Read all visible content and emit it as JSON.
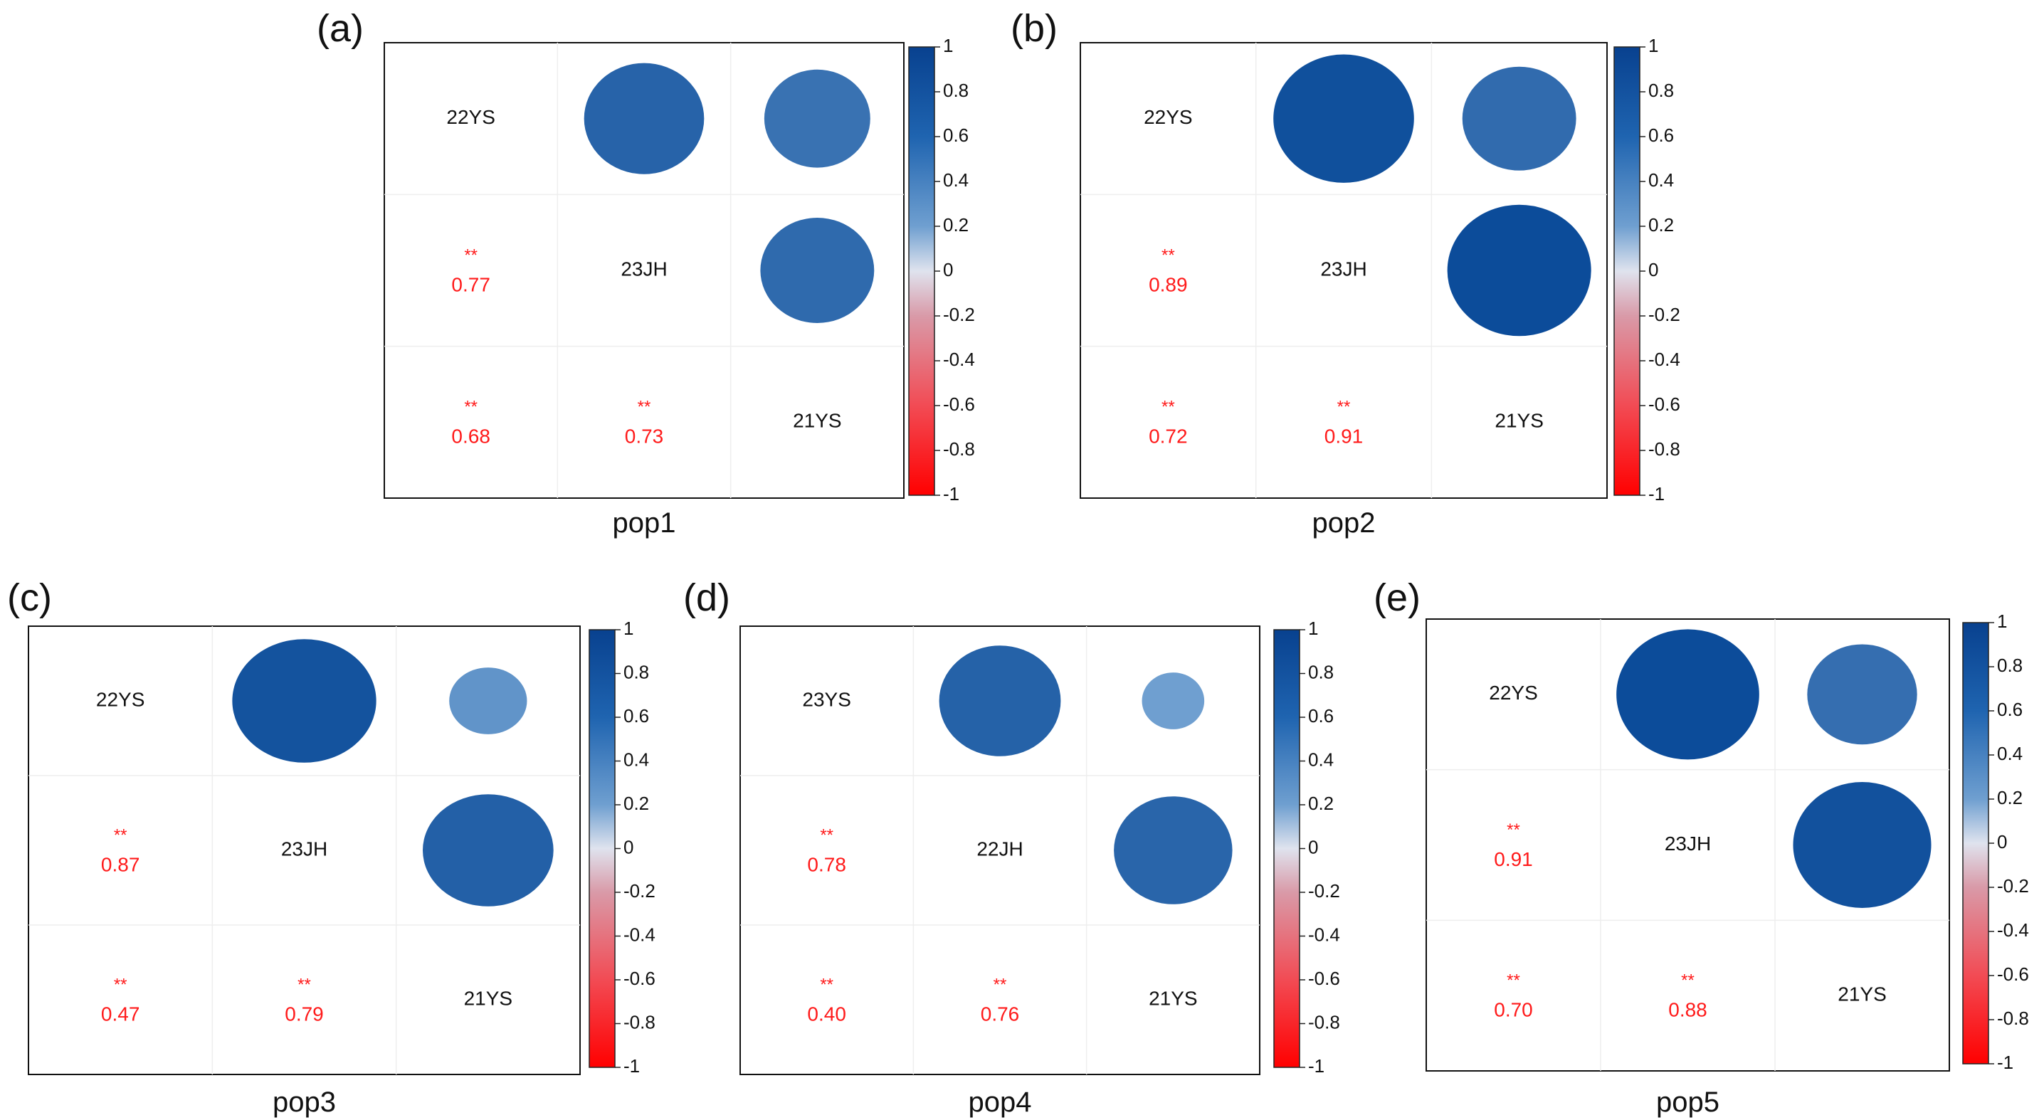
{
  "chart_data": [
    {
      "type": "heatmap",
      "panel": "(a)",
      "title": "pop1",
      "variables": [
        "22YS",
        "23JH",
        "21YS"
      ],
      "correlations": [
        {
          "row": "23JH",
          "col": "22YS",
          "r": 0.77,
          "sig": "**",
          "display": "0.77"
        },
        {
          "row": "21YS",
          "col": "22YS",
          "r": 0.68,
          "sig": "**",
          "display": "0.68"
        },
        {
          "row": "21YS",
          "col": "23JH",
          "r": 0.73,
          "sig": "**",
          "display": "0.73"
        }
      ],
      "colorbar": {
        "min": -1,
        "max": 1,
        "ticks": [
          "1",
          "0.8",
          "0.6",
          "0.4",
          "0.2",
          "0",
          "-0.2",
          "-0.4",
          "-0.6",
          "-0.8",
          "-1"
        ]
      }
    },
    {
      "type": "heatmap",
      "panel": "(b)",
      "title": "pop2",
      "variables": [
        "22YS",
        "23JH",
        "21YS"
      ],
      "correlations": [
        {
          "row": "23JH",
          "col": "22YS",
          "r": 0.89,
          "sig": "**",
          "display": "0.89"
        },
        {
          "row": "21YS",
          "col": "22YS",
          "r": 0.72,
          "sig": "**",
          "display": "0.72"
        },
        {
          "row": "21YS",
          "col": "23JH",
          "r": 0.91,
          "sig": "**",
          "display": "0.91"
        }
      ],
      "colorbar": {
        "min": -1,
        "max": 1,
        "ticks": [
          "1",
          "0.8",
          "0.6",
          "0.4",
          "0.2",
          "0",
          "-0.2",
          "-0.4",
          "-0.6",
          "-0.8",
          "-1"
        ]
      }
    },
    {
      "type": "heatmap",
      "panel": "(c)",
      "title": "pop3",
      "variables": [
        "22YS",
        "23JH",
        "21YS"
      ],
      "correlations": [
        {
          "row": "23JH",
          "col": "22YS",
          "r": 0.87,
          "sig": "**",
          "display": "0.87"
        },
        {
          "row": "21YS",
          "col": "22YS",
          "r": 0.47,
          "sig": "**",
          "display": "0.47"
        },
        {
          "row": "21YS",
          "col": "23JH",
          "r": 0.79,
          "sig": "**",
          "display": "0.79"
        }
      ],
      "colorbar": {
        "min": -1,
        "max": 1,
        "ticks": [
          "1",
          "0.8",
          "0.6",
          "0.4",
          "0.2",
          "0",
          "-0.2",
          "-0.4",
          "-0.6",
          "-0.8",
          "-1"
        ]
      }
    },
    {
      "type": "heatmap",
      "panel": "(d)",
      "title": "pop4",
      "variables": [
        "23YS",
        "22JH",
        "21YS"
      ],
      "correlations": [
        {
          "row": "22JH",
          "col": "23YS",
          "r": 0.78,
          "sig": "**",
          "display": "0.78"
        },
        {
          "row": "21YS",
          "col": "23YS",
          "r": 0.4,
          "sig": "**",
          "display": "0.40"
        },
        {
          "row": "21YS",
          "col": "22JH",
          "r": 0.76,
          "sig": "**",
          "display": "0.76"
        }
      ],
      "colorbar": {
        "min": -1,
        "max": 1,
        "ticks": [
          "1",
          "0.8",
          "0.6",
          "0.4",
          "0.2",
          "0",
          "-0.2",
          "-0.4",
          "-0.6",
          "-0.8",
          "-1"
        ]
      }
    },
    {
      "type": "heatmap",
      "panel": "(e)",
      "title": "pop5",
      "variables": [
        "22YS",
        "23JH",
        "21YS"
      ],
      "correlations": [
        {
          "row": "23JH",
          "col": "22YS",
          "r": 0.91,
          "sig": "**",
          "display": "0.91"
        },
        {
          "row": "21YS",
          "col": "22YS",
          "r": 0.7,
          "sig": "**",
          "display": "0.70"
        },
        {
          "row": "21YS",
          "col": "23JH",
          "r": 0.88,
          "sig": "**",
          "display": "0.88"
        }
      ],
      "colorbar": {
        "min": -1,
        "max": 1,
        "ticks": [
          "1",
          "0.8",
          "0.6",
          "0.4",
          "0.2",
          "0",
          "-0.2",
          "-0.4",
          "-0.6",
          "-0.8",
          "-1"
        ]
      }
    }
  ],
  "colors": {
    "positive": "#053061",
    "mid_positive": "#4393c3",
    "neutral": "#f7f7f7",
    "negative": "#ff0000",
    "text_coef": "#ff1a1a"
  }
}
